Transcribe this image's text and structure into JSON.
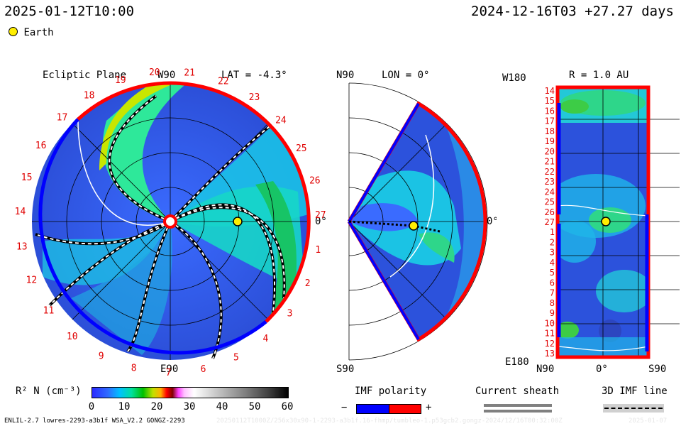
{
  "header": {
    "time_left": "2025-01-12T10:00",
    "time_right": "2024-12-16T03 +27.27 days",
    "earth_label": "Earth"
  },
  "panels": {
    "ecliptic": {
      "title": "Ecliptic Plane",
      "top_label": "W90",
      "lat_label": "LAT = -4.3°",
      "right_label": "0°",
      "bottom_label": "E90",
      "carrington_labels": [
        "20",
        "21",
        "22",
        "23",
        "24",
        "25",
        "26",
        "27",
        "1",
        "2",
        "3",
        "4",
        "5",
        "6",
        "7",
        "8",
        "9",
        "10",
        "11",
        "12",
        "13",
        "14",
        "15",
        "16",
        "17",
        "18",
        "19"
      ]
    },
    "meridional": {
      "top_label": "N90",
      "lon_label": "LON = 0°",
      "right_label": "0°",
      "bottom_label": "S90"
    },
    "radial": {
      "title": "R = 1.0 AU",
      "top_left": "W180",
      "bottom_left": "E180",
      "x_labels": [
        "N90",
        "0°",
        "S90"
      ],
      "y_labels": [
        "14",
        "15",
        "16",
        "17",
        "18",
        "19",
        "20",
        "21",
        "22",
        "23",
        "24",
        "25",
        "26",
        "27",
        "1",
        "2",
        "3",
        "4",
        "5",
        "6",
        "7",
        "8",
        "9",
        "10",
        "11",
        "12",
        "13"
      ]
    }
  },
  "colorbar": {
    "label": "R² N (cm⁻³)",
    "ticks": [
      "0",
      "10",
      "20",
      "30",
      "40",
      "50",
      "60"
    ],
    "range": [
      0,
      60
    ]
  },
  "legend": {
    "imf_polarity": "IMF polarity",
    "minus": "−",
    "plus": "+",
    "current_sheath": "Current sheath",
    "imf_line": "3D IMF line",
    "minus_color": "#0000ff",
    "plus_color": "#ff0000"
  },
  "footer": {
    "left": "ENLIL-2.7 lowres-2293-a3b1f WSA_V2.2 GONGZ-2293",
    "faded": "20250112T1000Z/256x30x90-1-2293-a3b1f.16-fhmp/tumbleo-1.p53gcb2.gongz-2024/12/16T00:32:00Z",
    "right": "2025-01-07"
  },
  "chart_data": {
    "type": "heatmap",
    "quantity": "R² N (cm⁻³)",
    "vmin": 0,
    "vmax": 60,
    "earth": {
      "panel_ecliptic_r_au": 1.0,
      "panel_radial_carrington": 27,
      "panel_radial_lat": 0
    },
    "annotations": [
      "Ecliptic Plane",
      "LAT = -4.3°",
      "LON = 0°",
      "R = 1.0 AU"
    ]
  }
}
